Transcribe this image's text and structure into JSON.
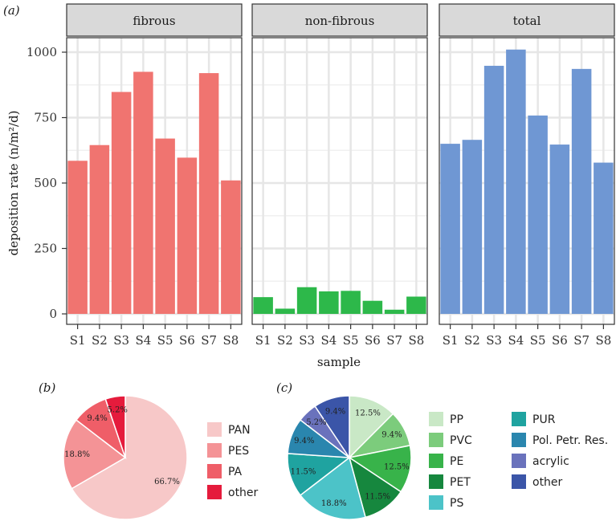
{
  "chart_data": [
    {
      "panel": "(a)",
      "type": "bar",
      "xlabel": "sample",
      "ylabel": "deposition rate (n/m²/d)",
      "ylim": [
        0,
        1080
      ],
      "yticks": [
        0,
        250,
        500,
        750,
        1000
      ],
      "ytick_labels": [
        "0",
        "250",
        "500",
        "750",
        "1000"
      ],
      "categories": [
        "S1",
        "S2",
        "S3",
        "S4",
        "S5",
        "S6",
        "S7",
        "S8"
      ],
      "facets": [
        {
          "name": "fibrous",
          "color": "#f07470",
          "values": [
            585,
            645,
            848,
            925,
            670,
            597,
            920,
            510
          ]
        },
        {
          "name": "non-fibrous",
          "color": "#2db84a",
          "values": [
            64,
            20,
            102,
            86,
            88,
            50,
            16,
            66
          ]
        },
        {
          "name": "total",
          "color": "#6f97d3",
          "values": [
            650,
            665,
            948,
            1010,
            758,
            647,
            936,
            578
          ]
        }
      ],
      "grid": true
    },
    {
      "panel": "(b)",
      "type": "pie",
      "slices": [
        {
          "label": "PAN",
          "value": 66.7,
          "text": "66.7%",
          "color": "#f7c8c8"
        },
        {
          "label": "PES",
          "value": 18.8,
          "text": "18.8%",
          "color": "#f49396"
        },
        {
          "label": "PA",
          "value": 9.4,
          "text": "9.4%",
          "color": "#ef5e68"
        },
        {
          "label": "other",
          "value": 5.2,
          "text": "5.2%",
          "color": "#e51b3c"
        }
      ],
      "legend": "right"
    },
    {
      "panel": "(c)",
      "type": "pie",
      "slices": [
        {
          "label": "PP",
          "value": 12.5,
          "text": "12.5%",
          "color": "#c9e8c6"
        },
        {
          "label": "PVC",
          "value": 9.4,
          "text": "9.4%",
          "color": "#7ccc7c"
        },
        {
          "label": "PE",
          "value": 12.5,
          "text": "12.5%",
          "color": "#38b34a"
        },
        {
          "label": "PET",
          "value": 11.5,
          "text": "11.5%",
          "color": "#16873e"
        },
        {
          "label": "PS",
          "value": 18.8,
          "text": "18.8%",
          "color": "#4cc3c8"
        },
        {
          "label": "PUR",
          "value": 11.5,
          "text": "11.5%",
          "color": "#1fa3a0"
        },
        {
          "label": "Pol. Petr. Res.",
          "value": 9.4,
          "text": "9.4%",
          "color": "#2a86ae"
        },
        {
          "label": "acrylic",
          "value": 5.2,
          "text": "5.2%",
          "color": "#6a72bc"
        },
        {
          "label": "other",
          "value": 9.4,
          "text": "9.4%",
          "color": "#3b55a8"
        }
      ],
      "legend": "right"
    }
  ]
}
